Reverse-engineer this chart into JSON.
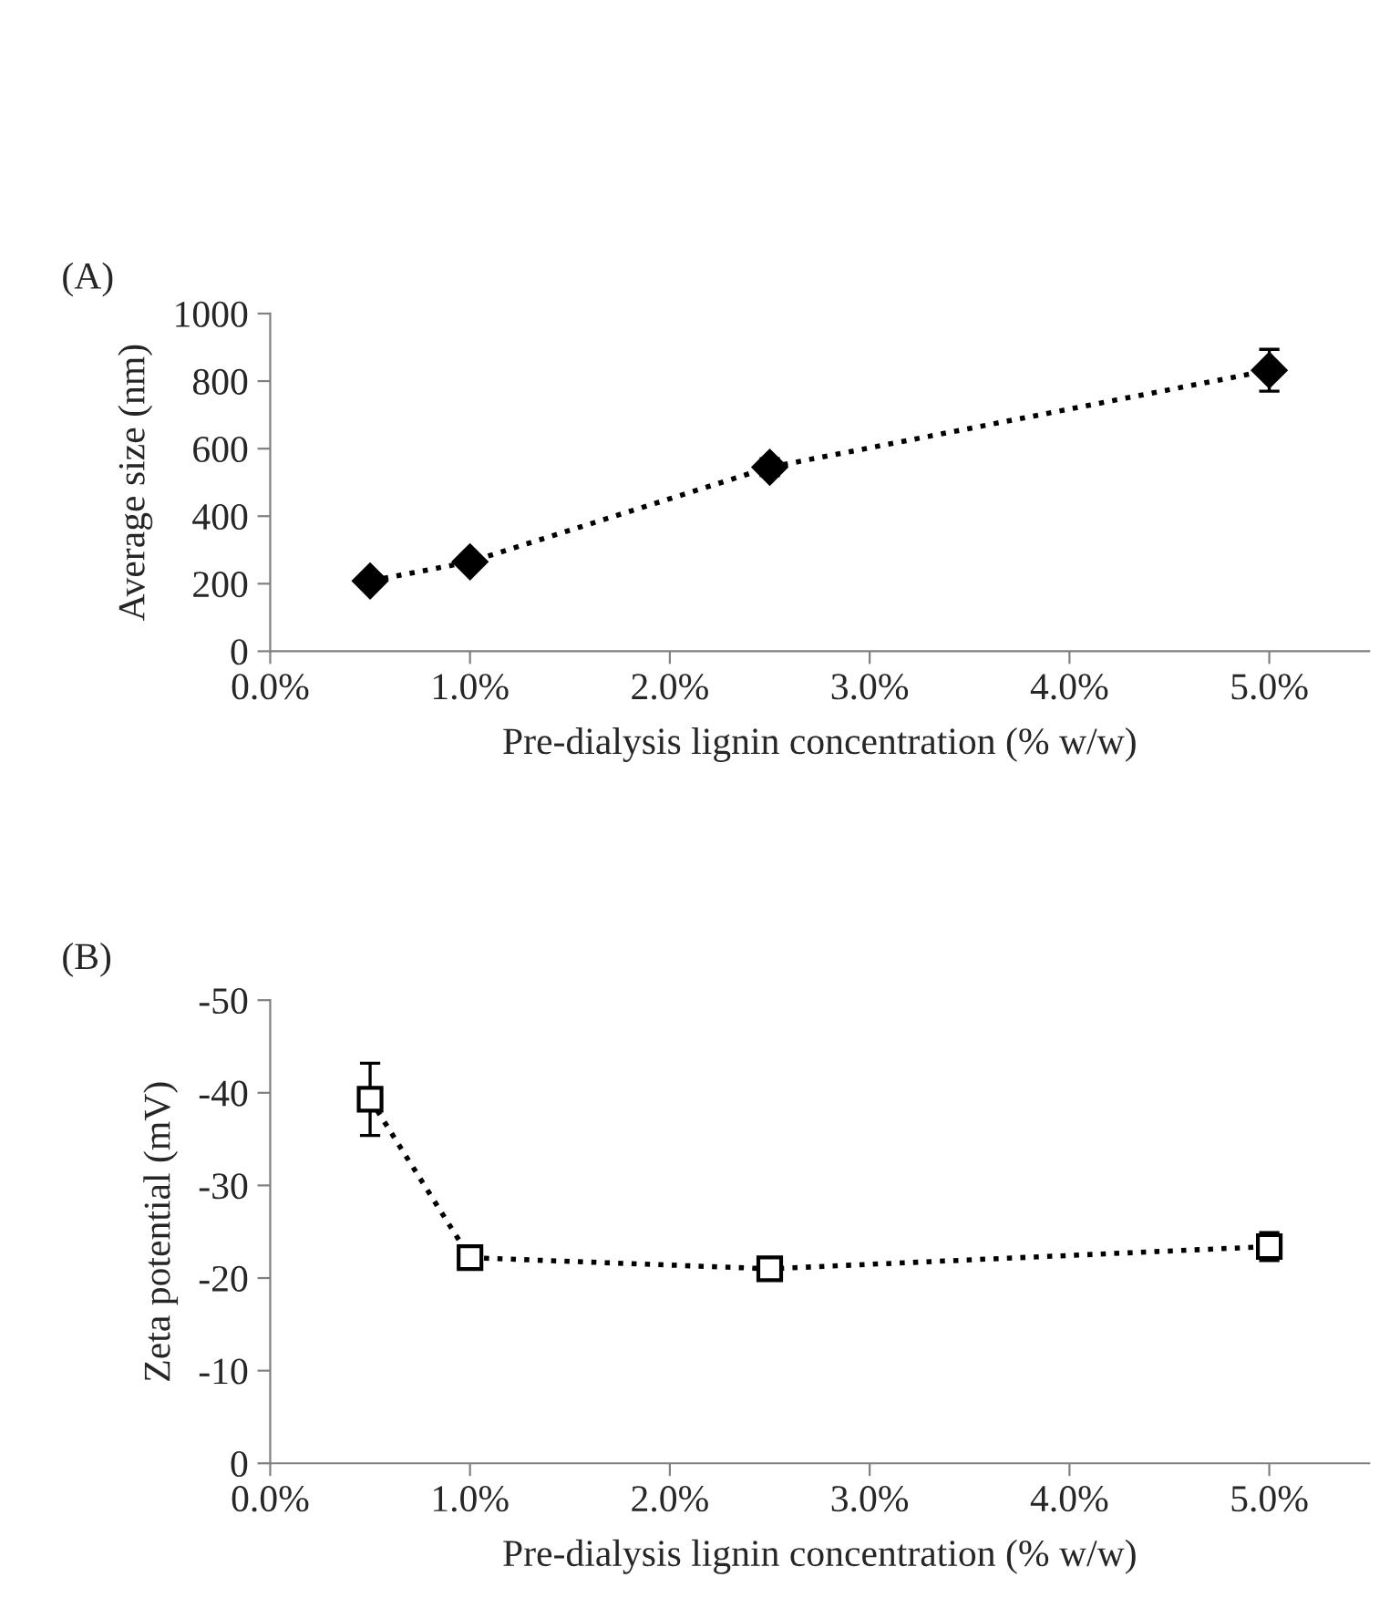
{
  "chart_data": [
    {
      "type": "line",
      "xlabel": "Pre-dialysis lignin concentration (% w/w)",
      "ylabel": "Average size (nm)",
      "annotations": [
        "(A)"
      ],
      "x": [
        0.5,
        1.0,
        2.5,
        5.0
      ],
      "series": [
        {
          "color": "#000000",
          "values": [
            208,
            265,
            545,
            832
          ],
          "errors": [
            15,
            8,
            25,
            62
          ]
        }
      ],
      "xlim": [
        0,
        5.5
      ],
      "xticks": [
        {
          "value": 0,
          "label": "0.0%"
        },
        {
          "value": 1,
          "label": "1.0%"
        },
        {
          "value": 2,
          "label": "2.0%"
        },
        {
          "value": 3,
          "label": "3.0%"
        },
        {
          "value": 4,
          "label": "4.0%"
        },
        {
          "value": 5,
          "label": "5.0%"
        }
      ],
      "ylim": [
        0,
        1000
      ],
      "yticks": [
        0,
        200,
        400,
        600,
        800,
        1000
      ],
      "grid": false,
      "legend": false,
      "marker": "diamond",
      "line_style": "dotted"
    },
    {
      "type": "line",
      "xlabel": "Pre-dialysis lignin concentration (% w/w)",
      "ylabel": "Zeta potential (mV)",
      "annotations": [
        "(B)"
      ],
      "x": [
        0.5,
        1.0,
        2.5,
        5.0
      ],
      "series": [
        {
          "color": "#000000",
          "values": [
            -39.3,
            -22.2,
            -21.0,
            -23.4
          ],
          "errors": [
            3.9,
            1.0,
            null,
            1.5
          ]
        }
      ],
      "xlim": [
        0,
        5.5
      ],
      "xticks": [
        {
          "value": 0,
          "label": "0.0%"
        },
        {
          "value": 1,
          "label": "1.0%"
        },
        {
          "value": 2,
          "label": "2.0%"
        },
        {
          "value": 3,
          "label": "3.0%"
        },
        {
          "value": 4,
          "label": "4.0%"
        },
        {
          "value": 5,
          "label": "5.0%"
        }
      ],
      "ylim": [
        0,
        -50
      ],
      "yticks": [
        0,
        -10,
        -20,
        -30,
        -40,
        -50
      ],
      "grid": false,
      "legend": false,
      "marker": "square",
      "line_style": "dotted"
    }
  ]
}
